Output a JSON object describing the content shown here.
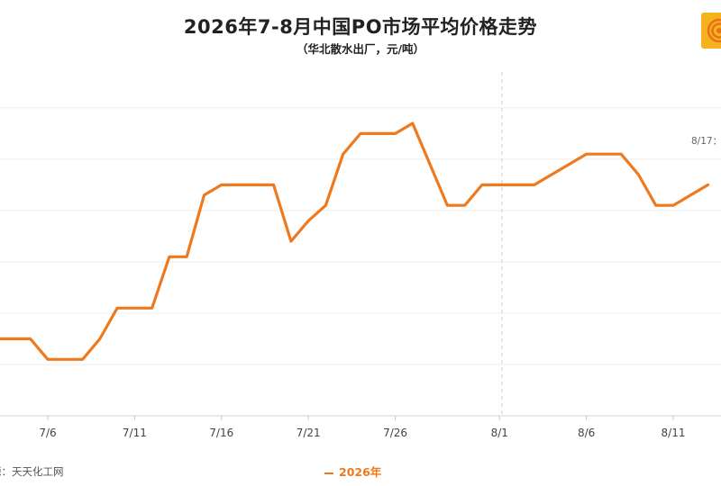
{
  "header": {
    "title": "2026年7-8月中国PO市场平均价格走势",
    "subtitle": "（华北散水出厂，元/吨）"
  },
  "footer": {
    "source": "源：天天化工网"
  },
  "annotation": {
    "text": "8/17："
  },
  "colors": {
    "series": "#ee7a1f",
    "grid": "#eeeeee",
    "divider": "#cccccc",
    "logo_outer": "#f6b21c",
    "logo_inner": "#e8701a"
  },
  "chart_data": {
    "type": "line",
    "title": "2026年7-8月中国PO市场平均价格走势",
    "subtitle": "（华北散水出厂，元/吨）",
    "xlabel": "",
    "ylabel": "",
    "x_ticks": [
      "7/6",
      "7/11",
      "7/16",
      "7/21",
      "7/26",
      "8/1",
      "8/6",
      "8/11"
    ],
    "x": [
      "7/3",
      "7/4",
      "7/5",
      "7/6",
      "7/7",
      "7/8",
      "7/9",
      "7/10",
      "7/11",
      "7/12",
      "7/13",
      "7/14",
      "7/15",
      "7/16",
      "7/17",
      "7/18",
      "7/19",
      "7/20",
      "7/21",
      "7/22",
      "7/23",
      "7/24",
      "7/25",
      "7/26",
      "7/27",
      "7/28",
      "7/29",
      "7/30",
      "7/31",
      "8/1",
      "8/2",
      "8/3",
      "8/6",
      "8/7",
      "8/8",
      "8/9",
      "8/10",
      "8/11",
      "8/12",
      "8/13"
    ],
    "series": [
      {
        "name": "2026年",
        "values": [
          4.5,
          4.5,
          4.5,
          4.1,
          4.1,
          4.1,
          4.5,
          5.1,
          5.1,
          5.1,
          6.1,
          6.1,
          7.3,
          7.5,
          7.5,
          7.5,
          7.5,
          6.4,
          6.8,
          7.1,
          8.1,
          8.5,
          8.5,
          8.5,
          8.7,
          7.9,
          7.1,
          7.1,
          7.5,
          7.5,
          7.5,
          7.5,
          8.1,
          8.1,
          8.1,
          7.7,
          7.1,
          7.1,
          7.3,
          7.5
        ]
      }
    ],
    "ylim": [
      3.0,
      9.7
    ],
    "grid": true,
    "legend": "bottom-center"
  }
}
